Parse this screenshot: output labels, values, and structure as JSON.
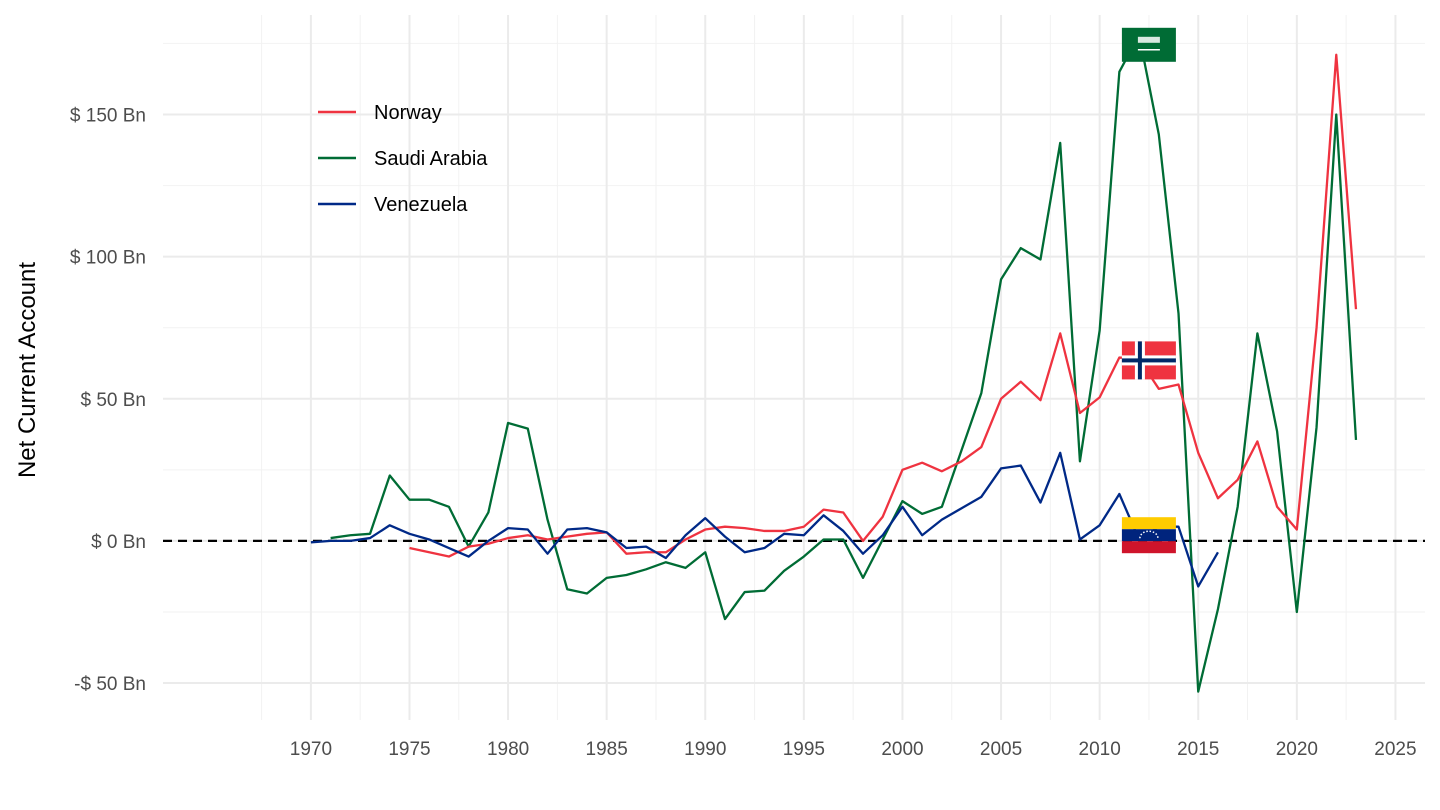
{
  "chart_data": {
    "type": "line",
    "title": "",
    "xlabel": "",
    "ylabel": "Net Current Account",
    "xlim": [
      1962.5,
      2026.5
    ],
    "ylim": [
      -63,
      185
    ],
    "x_ticks": [
      1970,
      1975,
      1980,
      1985,
      1990,
      1995,
      2000,
      2005,
      2010,
      2015,
      2020,
      2025
    ],
    "x_tick_labels": [
      "1970",
      "1975",
      "1980",
      "1985",
      "1990",
      "1995",
      "2000",
      "2005",
      "2010",
      "2015",
      "2020",
      "2025"
    ],
    "y_ticks": [
      -50,
      0,
      50,
      100,
      150
    ],
    "y_tick_labels": [
      "-$ 50 Bn",
      "$ 0 Bn",
      "$ 50 Bn",
      "$ 100 Bn",
      "$ 150 Bn"
    ],
    "grid": true,
    "reference_line": {
      "y": 0,
      "style": "dashed",
      "color": "#000000"
    },
    "legend": {
      "position": "top-left",
      "entries": [
        "Norway",
        "Saudi Arabia",
        "Venezuela"
      ]
    },
    "series": [
      {
        "name": "Norway",
        "color": "#ef3340",
        "flag": "norway-flag",
        "x": [
          1975,
          1976,
          1977,
          1978,
          1979,
          1980,
          1981,
          1982,
          1983,
          1984,
          1985,
          1986,
          1987,
          1988,
          1989,
          1990,
          1991,
          1992,
          1993,
          1994,
          1995,
          1996,
          1997,
          1998,
          1999,
          2000,
          2001,
          2002,
          2003,
          2004,
          2005,
          2006,
          2007,
          2008,
          2009,
          2010,
          2011,
          2012,
          2013,
          2014,
          2015,
          2016,
          2017,
          2018,
          2019,
          2020,
          2021,
          2022,
          2023
        ],
        "values": [
          -2.5,
          -4,
          -5.5,
          -2,
          -1,
          1,
          2,
          0.5,
          1.5,
          2.5,
          3,
          -4.5,
          -4,
          -4,
          0.5,
          4,
          5,
          4.5,
          3.5,
          3.5,
          5,
          11,
          10,
          0,
          8.5,
          25,
          27.5,
          24.5,
          28,
          33,
          50,
          56,
          49.5,
          73,
          45,
          50.5,
          64.5,
          64,
          53.5,
          55,
          31,
          15,
          21.5,
          35,
          12,
          4,
          75,
          171,
          81.5
        ]
      },
      {
        "name": "Saudi Arabia",
        "color": "#006c35",
        "flag": "saudi-arabia-flag",
        "x": [
          1971,
          1972,
          1973,
          1974,
          1975,
          1976,
          1977,
          1978,
          1979,
          1980,
          1981,
          1982,
          1983,
          1984,
          1985,
          1986,
          1987,
          1988,
          1989,
          1990,
          1991,
          1992,
          1993,
          1994,
          1995,
          1996,
          1997,
          1998,
          1999,
          2000,
          2001,
          2002,
          2003,
          2004,
          2005,
          2006,
          2007,
          2008,
          2009,
          2010,
          2011,
          2012,
          2013,
          2014,
          2015,
          2016,
          2017,
          2018,
          2019,
          2020,
          2021,
          2022,
          2023
        ],
        "values": [
          1,
          2,
          2.5,
          23,
          14.5,
          14.5,
          12,
          -2,
          10,
          41.5,
          39.5,
          7.5,
          -17,
          -18.5,
          -13,
          -12,
          -10,
          -7.5,
          -9.5,
          -4,
          -27.5,
          -18,
          -17.5,
          -10.5,
          -5.5,
          0.5,
          0.5,
          -13,
          0.5,
          14,
          9.5,
          12,
          32,
          52,
          92,
          103,
          99,
          140,
          28,
          74,
          165,
          178,
          143,
          80,
          -53,
          -24,
          12,
          73,
          38.5,
          -25,
          40,
          150,
          35.5
        ]
      },
      {
        "name": "Venezuela",
        "color": "#002987",
        "flag": "venezuela-flag",
        "x": [
          1970,
          1971,
          1972,
          1973,
          1974,
          1975,
          1976,
          1977,
          1978,
          1979,
          1980,
          1981,
          1982,
          1983,
          1984,
          1985,
          1986,
          1987,
          1988,
          1989,
          1990,
          1991,
          1992,
          1993,
          1994,
          1995,
          1996,
          1997,
          1998,
          1999,
          2000,
          2001,
          2002,
          2003,
          2004,
          2005,
          2006,
          2007,
          2008,
          2009,
          2010,
          2011,
          2012,
          2013,
          2014,
          2015,
          2016
        ],
        "values": [
          -0.5,
          0,
          0,
          1,
          5.5,
          2.5,
          0.5,
          -2.5,
          -5.5,
          0,
          4.5,
          4,
          -4.5,
          4,
          4.5,
          3,
          -2.5,
          -2,
          -6,
          2,
          8,
          1.5,
          -4,
          -2.5,
          2.5,
          2,
          9,
          3.5,
          -4.5,
          2,
          12,
          2,
          7.5,
          11.5,
          15.5,
          25.5,
          26.5,
          13.5,
          31,
          0.5,
          5.5,
          16.5,
          0.5,
          5,
          5,
          -16,
          -4
        ]
      }
    ]
  }
}
